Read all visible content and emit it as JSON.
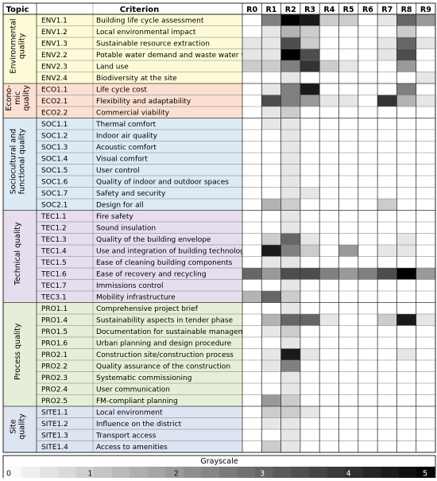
{
  "colors": {
    "environmental": "#fdfbd7",
    "economic": "#fbe0d2",
    "sociocultural": "#dceaf5",
    "technical": "#e6deef",
    "process": "#e5efd7",
    "site": "#dde4f2"
  },
  "chart_data": {
    "type": "heatmap",
    "title": "",
    "xlabel": "",
    "ylabel": "",
    "header": {
      "topic": "Topic",
      "criterion": "Criterion"
    },
    "columns": [
      "R0",
      "R1",
      "R2",
      "R3",
      "R4",
      "R5",
      "R6",
      "R7",
      "R8",
      "R9"
    ],
    "groups": [
      {
        "name": "Environmental quality",
        "label_lines": [
          "Environmental",
          "quality"
        ],
        "color": "environmental",
        "rows": [
          {
            "code": "ENV1.1",
            "name": "Building life cycle assessment",
            "values": [
              0,
              2.5,
              5,
              4.5,
              1,
              1,
              0,
              0.5,
              3,
              2
            ]
          },
          {
            "code": "ENV1.2",
            "name": "Local environmental impact",
            "values": [
              0,
              0.5,
              1.5,
              1,
              0,
              0,
              0,
              0,
              1,
              0
            ]
          },
          {
            "code": "ENV1.3",
            "name": "Sustainable resource extraction",
            "values": [
              0.5,
              0.5,
              3.5,
              1,
              0,
              0,
              0,
              0.5,
              3,
              0.5
            ]
          },
          {
            "code": "ENV2.2",
            "name": "Potable water demand and waste water volume",
            "values": [
              0.5,
              0.5,
              5,
              3.5,
              0,
              0,
              0,
              0.5,
              3.5,
              0
            ]
          },
          {
            "code": "ENV2.3",
            "name": "Land use",
            "values": [
              1,
              1,
              2.5,
              4,
              1,
              0.5,
              0,
              0,
              2,
              0
            ]
          },
          {
            "code": "ENV2.4",
            "name": "Biodiversity at the site",
            "values": [
              0,
              0,
              0.5,
              0,
              0,
              0,
              0,
              0,
              0,
              0.5
            ]
          }
        ]
      },
      {
        "name": "Economic quality",
        "label_lines": [
          "Econo-",
          "mic",
          "quality"
        ],
        "color": "economic",
        "rows": [
          {
            "code": "ECO1.1",
            "name": "Life cycle cost",
            "values": [
              0,
              0.5,
              2.5,
              4.5,
              0,
              0,
              0,
              0,
              2.5,
              0
            ]
          },
          {
            "code": "ECO2.1",
            "name": "Flexibility and adaptability",
            "values": [
              0,
              3.5,
              2.5,
              2,
              0.5,
              0.5,
              0,
              4,
              1.5,
              0.5
            ]
          },
          {
            "code": "ECO2.2",
            "name": "Commercial viability",
            "values": [
              0,
              0.5,
              1,
              0,
              0,
              0,
              0,
              0,
              0,
              0
            ]
          }
        ]
      },
      {
        "name": "Sociocultural and functional quality",
        "label_lines": [
          "Sociocultural and",
          "functional quality"
        ],
        "color": "sociocultural",
        "rows": [
          {
            "code": "SOC1.1",
            "name": "Thermal comfort",
            "values": [
              0,
              0.5,
              0.5,
              0,
              0,
              0,
              0,
              0,
              0,
              0
            ]
          },
          {
            "code": "SOC1.2",
            "name": "Indoor air quality",
            "values": [
              0,
              0,
              0.5,
              0,
              0,
              0,
              0,
              0,
              0,
              0
            ]
          },
          {
            "code": "SOC1.3",
            "name": "Acoustic comfort",
            "values": [
              0,
              0,
              0.5,
              0,
              0,
              0,
              0,
              0,
              0,
              0
            ]
          },
          {
            "code": "SOC1.4",
            "name": "Visual comfort",
            "values": [
              0,
              0,
              0.5,
              0,
              0,
              0,
              0,
              0,
              0,
              0
            ]
          },
          {
            "code": "SOC1.5",
            "name": "User control",
            "values": [
              0,
              0,
              0.5,
              0,
              0,
              0,
              0,
              0,
              0,
              0
            ]
          },
          {
            "code": "SOC1.6",
            "name": "Quality of indoor and outdoor spaces",
            "values": [
              0,
              0,
              0.5,
              0,
              0,
              0,
              0,
              0,
              0,
              0
            ]
          },
          {
            "code": "SOC1.7",
            "name": "Safety and security",
            "values": [
              0,
              0,
              0.5,
              0.5,
              0,
              0,
              0,
              0,
              0,
              0
            ]
          },
          {
            "code": "SOC2.1",
            "name": "Design for all",
            "values": [
              0,
              1.5,
              1,
              0,
              0,
              0,
              0,
              1,
              0,
              0
            ]
          }
        ]
      },
      {
        "name": "Technical quality",
        "label_lines": [
          "Technical quality"
        ],
        "color": "technical",
        "rows": [
          {
            "code": "TEC1.1",
            "name": "Fire safety",
            "values": [
              0,
              0,
              0.5,
              0,
              0,
              0,
              0,
              0,
              0,
              0
            ]
          },
          {
            "code": "TEC1.2",
            "name": "Sound insulation",
            "values": [
              0,
              0,
              0.5,
              0,
              0,
              0,
              0,
              0,
              0,
              0
            ]
          },
          {
            "code": "TEC1.3",
            "name": "Quality of the building envelope",
            "values": [
              0,
              1,
              3,
              0.5,
              0,
              0,
              0,
              0,
              0.5,
              0
            ]
          },
          {
            "code": "TEC1.4",
            "name": "Use and integration of building technology",
            "values": [
              0,
              4.5,
              2.5,
              1,
              0,
              2,
              0,
              0.5,
              0.5,
              0
            ]
          },
          {
            "code": "TEC1.5",
            "name": "Ease of cleaning building components",
            "values": [
              0,
              0.5,
              0.5,
              0,
              0,
              0,
              0,
              0,
              0,
              0
            ]
          },
          {
            "code": "TEC1.6",
            "name": "Ease of recovery and recycling",
            "values": [
              3,
              2,
              3.5,
              3.5,
              2.5,
              2,
              2.5,
              3.5,
              5,
              2
            ]
          },
          {
            "code": "TEC1.7",
            "name": "Immissions control",
            "values": [
              0,
              0,
              0.5,
              0,
              0,
              0,
              0,
              0,
              0,
              0
            ]
          },
          {
            "code": "TEC3.1",
            "name": "Mobility infrastructure",
            "values": [
              1.5,
              3,
              1,
              0,
              0,
              0,
              0,
              0,
              0,
              0
            ]
          }
        ]
      },
      {
        "name": "Process quality",
        "label_lines": [
          "Process quality"
        ],
        "color": "process",
        "rows": [
          {
            "code": "PRO1.1",
            "name": "Comprehensive project brief",
            "values": [
              0,
              0,
              0.5,
              0,
              0,
              0,
              0,
              0,
              0,
              0
            ]
          },
          {
            "code": "PRO1.4",
            "name": "Sustainability aspects in tender phase",
            "values": [
              0,
              1.5,
              3,
              3,
              0.5,
              0,
              0,
              1,
              4.5,
              0.5
            ]
          },
          {
            "code": "PRO1.5",
            "name": "Documentation for sustainable management",
            "values": [
              0,
              0.5,
              1,
              0,
              0,
              0,
              0,
              0,
              0,
              0
            ]
          },
          {
            "code": "PRO1.6",
            "name": "Urban planning and design procedure",
            "values": [
              0,
              0,
              0.5,
              0,
              0,
              0,
              0,
              0,
              0,
              0
            ]
          },
          {
            "code": "PRO2.1",
            "name": "Construction site/construction process",
            "values": [
              0,
              0.5,
              4.5,
              0.5,
              0,
              0,
              0,
              0,
              0.5,
              0
            ]
          },
          {
            "code": "PRO2.2",
            "name": "Quality assurance of the construction",
            "values": [
              0,
              0.5,
              2.5,
              0,
              0,
              0,
              0,
              0,
              0,
              0
            ]
          },
          {
            "code": "PRO2.3",
            "name": "Systematic commissioning",
            "values": [
              0,
              0,
              0.5,
              0,
              0,
              0,
              0,
              0,
              0,
              0
            ]
          },
          {
            "code": "PRO2.4",
            "name": "User communication",
            "values": [
              0,
              0,
              0.5,
              0,
              0,
              0,
              0,
              0,
              0,
              0
            ]
          },
          {
            "code": "PRO2.5",
            "name": "FM-compliant planning",
            "values": [
              0,
              2,
              1,
              0,
              0,
              0,
              0,
              0,
              0,
              0
            ]
          }
        ]
      },
      {
        "name": "Site quality",
        "label_lines": [
          "Site",
          "quality"
        ],
        "color": "site",
        "rows": [
          {
            "code": "SITE1.1",
            "name": "Local environment",
            "values": [
              0,
              1,
              1,
              0.5,
              0,
              0,
              0,
              0,
              0,
              0
            ]
          },
          {
            "code": "SITE1.2",
            "name": "Influence on the district",
            "values": [
              0,
              0.5,
              0.5,
              0,
              0,
              0,
              0,
              0,
              0,
              0
            ]
          },
          {
            "code": "SITE1.3",
            "name": "Transport access",
            "values": [
              0,
              0,
              0.5,
              0,
              0,
              0,
              0,
              0,
              0,
              0
            ]
          },
          {
            "code": "SITE1.4",
            "name": "Access to amenities",
            "values": [
              0,
              1,
              0.5,
              0,
              0,
              0,
              0,
              0,
              0,
              0
            ]
          }
        ]
      }
    ],
    "scale": {
      "title": "Grayscale",
      "min": 0,
      "max": 5,
      "ticks": [
        "0",
        "1",
        "2",
        "3",
        "4",
        "5"
      ]
    }
  }
}
